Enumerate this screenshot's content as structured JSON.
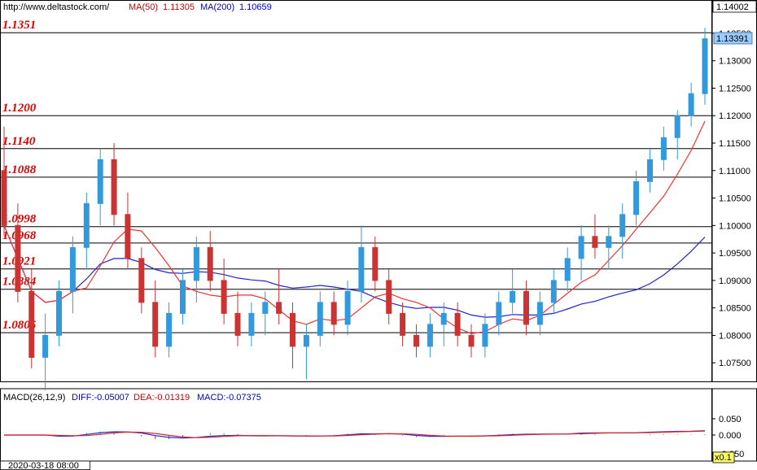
{
  "header": {
    "site": "http://www.deltastock.com/",
    "ma50_label": "MA(50)",
    "ma50_value": "1.11305",
    "ma200_label": "MA(200)",
    "ma200_value": "1.10659"
  },
  "macd_header": {
    "name": "MACD(26,12,9)",
    "diff": "DIFF:-0.05007",
    "dea": "DEA:-0.01319",
    "macd": "MACD:-0.07375"
  },
  "price_axis": {
    "top_label": "1.14002",
    "current_label": "1.13391",
    "ticks": [
      "1.13500",
      "1.13000",
      "1.12500",
      "1.12000",
      "1.11500",
      "1.11000",
      "1.10500",
      "1.10000",
      "1.09500",
      "1.09000",
      "1.08500",
      "1.08000",
      "1.07500"
    ]
  },
  "macd_axis": {
    "ticks": [
      "0.050",
      "0.000",
      "-0.050"
    ]
  },
  "bottom": {
    "date_label": "2020-03-18 08:00",
    "zoom_label": "x0.1"
  },
  "colors": {
    "up": "#3399dd",
    "down": "#cc3333",
    "ma50": "#ee3333",
    "ma200": "#2222cc",
    "level_text": "#e00000",
    "current_bg": "#99ccff"
  },
  "chart_data": {
    "type": "candlestick",
    "levels": [
      "1.1351",
      "1.1200",
      "1.1140",
      "1.1088",
      "1.0998",
      "1.0968",
      "1.0921",
      "1.0884",
      "1.0805"
    ],
    "price_range": [
      1.0703,
      1.14
    ],
    "series": [
      {
        "name": "MA(50)"
      },
      {
        "name": "MA(200)"
      }
    ],
    "candles_approx": [
      [
        1.11,
        1.118,
        1.098,
        1.1
      ],
      [
        1.1,
        1.104,
        1.086,
        1.088
      ],
      [
        1.088,
        1.092,
        1.074,
        1.076
      ],
      [
        1.076,
        1.084,
        1.07,
        1.08
      ],
      [
        1.08,
        1.09,
        1.078,
        1.088
      ],
      [
        1.088,
        1.098,
        1.084,
        1.096
      ],
      [
        1.096,
        1.106,
        1.092,
        1.104
      ],
      [
        1.104,
        1.114,
        1.1,
        1.112
      ],
      [
        1.112,
        1.115,
        1.1,
        1.102
      ],
      [
        1.102,
        1.106,
        1.092,
        1.094
      ],
      [
        1.094,
        1.096,
        1.084,
        1.086
      ],
      [
        1.086,
        1.09,
        1.076,
        1.078
      ],
      [
        1.078,
        1.086,
        1.076,
        1.084
      ],
      [
        1.084,
        1.092,
        1.082,
        1.09
      ],
      [
        1.09,
        1.098,
        1.086,
        1.096
      ],
      [
        1.096,
        1.099,
        1.088,
        1.09
      ],
      [
        1.09,
        1.094,
        1.082,
        1.084
      ],
      [
        1.084,
        1.088,
        1.078,
        1.08
      ],
      [
        1.08,
        1.086,
        1.078,
        1.084
      ],
      [
        1.084,
        1.088,
        1.08,
        1.086
      ],
      [
        1.086,
        1.092,
        1.082,
        1.084
      ],
      [
        1.084,
        1.086,
        1.074,
        1.078
      ],
      [
        1.078,
        1.082,
        1.072,
        1.08
      ],
      [
        1.08,
        1.088,
        1.078,
        1.086
      ],
      [
        1.086,
        1.088,
        1.08,
        1.082
      ],
      [
        1.082,
        1.09,
        1.08,
        1.088
      ],
      [
        1.088,
        1.1,
        1.086,
        1.096
      ],
      [
        1.096,
        1.098,
        1.088,
        1.09
      ],
      [
        1.09,
        1.092,
        1.082,
        1.084
      ],
      [
        1.084,
        1.086,
        1.078,
        1.08
      ],
      [
        1.08,
        1.082,
        1.076,
        1.078
      ],
      [
        1.078,
        1.084,
        1.076,
        1.082
      ],
      [
        1.082,
        1.086,
        1.078,
        1.084
      ],
      [
        1.084,
        1.086,
        1.078,
        1.08
      ],
      [
        1.08,
        1.082,
        1.076,
        1.078
      ],
      [
        1.078,
        1.084,
        1.076,
        1.082
      ],
      [
        1.082,
        1.088,
        1.08,
        1.086
      ],
      [
        1.086,
        1.092,
        1.084,
        1.088
      ],
      [
        1.088,
        1.09,
        1.08,
        1.082
      ],
      [
        1.082,
        1.088,
        1.08,
        1.086
      ],
      [
        1.086,
        1.092,
        1.084,
        1.09
      ],
      [
        1.09,
        1.096,
        1.088,
        1.094
      ],
      [
        1.094,
        1.1,
        1.09,
        1.098
      ],
      [
        1.098,
        1.102,
        1.094,
        1.096
      ],
      [
        1.096,
        1.1,
        1.092,
        1.098
      ],
      [
        1.098,
        1.104,
        1.094,
        1.102
      ],
      [
        1.102,
        1.11,
        1.1,
        1.108
      ],
      [
        1.108,
        1.114,
        1.106,
        1.112
      ],
      [
        1.112,
        1.118,
        1.11,
        1.116
      ],
      [
        1.116,
        1.121,
        1.112,
        1.12
      ],
      [
        1.12,
        1.126,
        1.118,
        1.124
      ],
      [
        1.124,
        1.136,
        1.122,
        1.134
      ]
    ]
  }
}
